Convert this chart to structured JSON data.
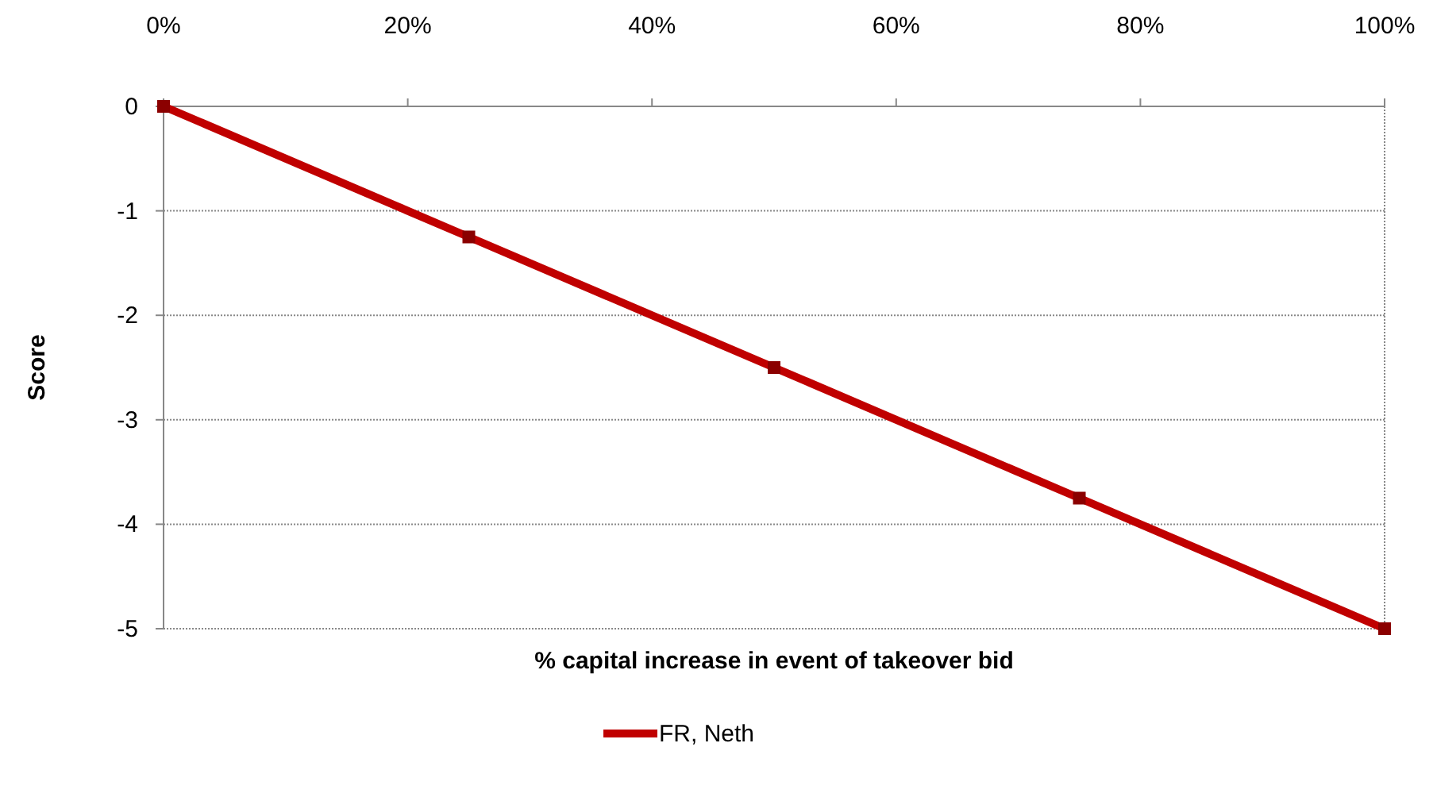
{
  "chart_data": {
    "type": "line",
    "xlabel": "% capital increase in event of takeover bid",
    "ylabel": "Score",
    "x": [
      0,
      25,
      50,
      75,
      100
    ],
    "series": [
      {
        "name": "FR, Neth",
        "color": "#c00000",
        "values": [
          0,
          -1.25,
          -2.5,
          -3.75,
          -5
        ]
      }
    ],
    "xlim": [
      0,
      100
    ],
    "xticks": [
      {
        "value": 0,
        "label": "0%"
      },
      {
        "value": 20,
        "label": "20%"
      },
      {
        "value": 40,
        "label": "40%"
      },
      {
        "value": 60,
        "label": "60%"
      },
      {
        "value": 80,
        "label": "80%"
      },
      {
        "value": 100,
        "label": "100%"
      }
    ],
    "ylim": [
      -5,
      0
    ],
    "yticks": [
      0,
      -1,
      -2,
      -3,
      -4,
      -5
    ],
    "grid": "y",
    "legend": "bottom",
    "marker": "square",
    "line_style": "solid"
  }
}
